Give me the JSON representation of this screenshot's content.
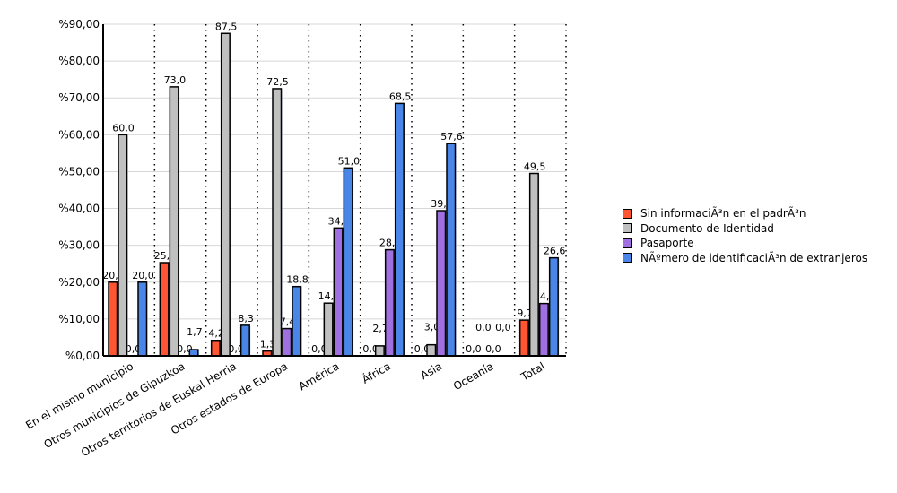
{
  "chart_data": {
    "type": "bar",
    "title": "",
    "xlabel": "",
    "ylabel": "",
    "ylim": [
      0,
      90
    ],
    "yticks": [
      "%0,00",
      "%10,00",
      "%20,00",
      "%30,00",
      "%40,00",
      "%50,00",
      "%60,00",
      "%70,00",
      "%80,00",
      "%90,00"
    ],
    "categories": [
      "En el mismo municipio",
      "Otros municipios de Gipuzkoa",
      "Otros territorios de Euskal Herria",
      "Otros estados de Europa",
      "América",
      "África",
      "Asia",
      "Oceanía",
      "Total"
    ],
    "series": [
      {
        "name": "Sin informaciÃ³n en el padrÃ³n",
        "color": "#ff5533",
        "values": [
          20.0,
          25.3,
          4.2,
          1.3,
          0.0,
          0.0,
          0.0,
          0.0,
          9.7
        ],
        "labels": [
          "20,0",
          "25,3",
          "4,2",
          "1,3",
          "0,0",
          "0,0",
          "0,0",
          "0,0",
          "9,7"
        ]
      },
      {
        "name": "Documento de Identidad",
        "color": "#c0c0c0",
        "values": [
          60.0,
          73.0,
          87.5,
          72.5,
          14.3,
          2.7,
          3.0,
          0.0,
          49.5
        ],
        "labels": [
          "60,0",
          "73,0",
          "87,5",
          "72,5",
          "14,3",
          "2,7",
          "3,0",
          "0,0",
          "49,5"
        ]
      },
      {
        "name": "Pasaporte",
        "color": "#a070e0",
        "values": [
          0.0,
          0.0,
          0.0,
          7.4,
          34.7,
          28.8,
          39.4,
          0.0,
          14.2
        ],
        "labels": [
          "0,0",
          "0,0",
          "0,0",
          "7,4",
          "34,7",
          "28,8",
          "39,4",
          "0,0",
          "14,2"
        ]
      },
      {
        "name": "NÃºmero de identificaciÃ³n de extranjeros",
        "color": "#4a86e8",
        "values": [
          20.0,
          1.7,
          8.3,
          18.8,
          51.0,
          68.5,
          57.6,
          0.0,
          26.6
        ],
        "labels": [
          "20,0",
          "1,7",
          "8,3",
          "18,8",
          "51,0",
          "68,5",
          "57,6",
          "0,0",
          "26,6"
        ]
      }
    ],
    "legend_position": "right",
    "grid": true
  }
}
